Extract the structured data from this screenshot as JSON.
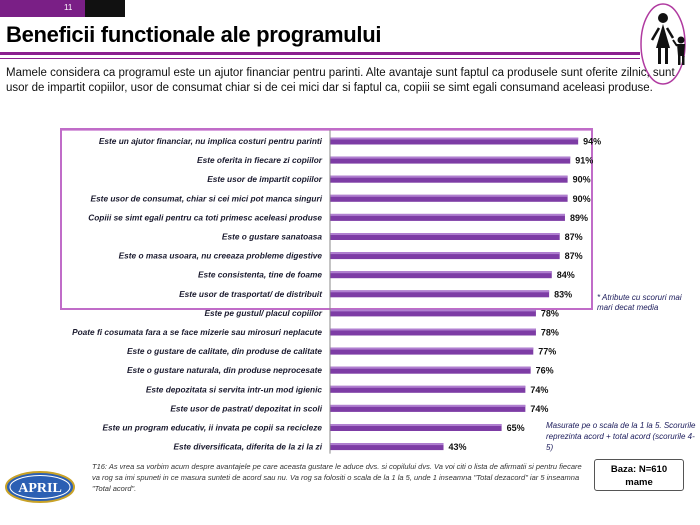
{
  "page_number": "11",
  "title": "Beneficii functionale ale programului",
  "intro": "Mamele considera ca programul este un ajutor financiar pentru parinti. Alte avantaje sunt faptul ca produsele sunt oferite zilnic, sunt usor de impartit copiilor, usor de consumat chiar si de cei mici dar si faptul ca, copiii se simt egali consumand aceleasi produse.",
  "note_top": "* Atribute cu scoruri mai mari decat media",
  "note_scale": "Masurate pe o scala de la 1 la 5. Scorurile reprezinta acord + total acord (scorurile 4-5)",
  "footnote": "T16: As vrea sa vorbim acum despre avantajele pe care aceasta gustare le aduce dvs. si copilului dvs. Va voi citi o lista de afirmatii si pentru fiecare va rog sa imi spuneti in ce masura sunteti de acord sau nu. Va rog sa folositi o scala de la 1 la 5, unde 1 inseamna \"Total dezacord\" iar 5 inseamna \"Total acord\".",
  "baza_line1": "Baza:  N=610",
  "baza_line2": "mame",
  "logo_text": "APRIL",
  "colors": {
    "bar": "#7d3ca5",
    "bar_highlight": "#b07fd0",
    "accent": "#8b1f8f",
    "box": "#c06cc8"
  },
  "chart_data": {
    "type": "bar",
    "orientation": "horizontal",
    "categories": [
      "Este un ajutor financiar, nu implica costuri pentru parinti",
      "Este oferita in fiecare zi copiilor",
      "Este usor de impartit copiilor",
      "Este usor de consumat, chiar si cei mici pot manca singuri",
      "Copiii se simt egali pentru ca toti primesc aceleasi produse",
      "Este o gustare sanatoasa",
      "Este o masa usoara, nu creeaza probleme digestive",
      "Este consistenta, tine de foame",
      "Este usor de trasportat/ de distribuit",
      "Este pe gustul/ placul copiilor",
      "Poate fi cosumata fara a se face mizerie sau mirosuri neplacute",
      "Este o gustare de calitate, din produse de calitate",
      "Este o gustare naturala, din produse neprocesate",
      "Este depozitata si servita intr-un mod igienic",
      "Este usor de pastrat/ depozitat in scoli",
      "Este un program educativ, ii invata pe copii sa recicleze",
      "Este diversificata, diferita de la zi la zi"
    ],
    "values": [
      94,
      91,
      90,
      90,
      89,
      87,
      87,
      84,
      83,
      78,
      78,
      77,
      76,
      74,
      74,
      65,
      43
    ],
    "value_labels": [
      "94%",
      "91%",
      "90%",
      "90%",
      "89%",
      "87%",
      "87%",
      "84%",
      "83%",
      "78%",
      "78%",
      "77%",
      "76%",
      "74%",
      "74%",
      "65%",
      "43%"
    ],
    "above_average_count": 9,
    "xlim": [
      0,
      100
    ]
  }
}
